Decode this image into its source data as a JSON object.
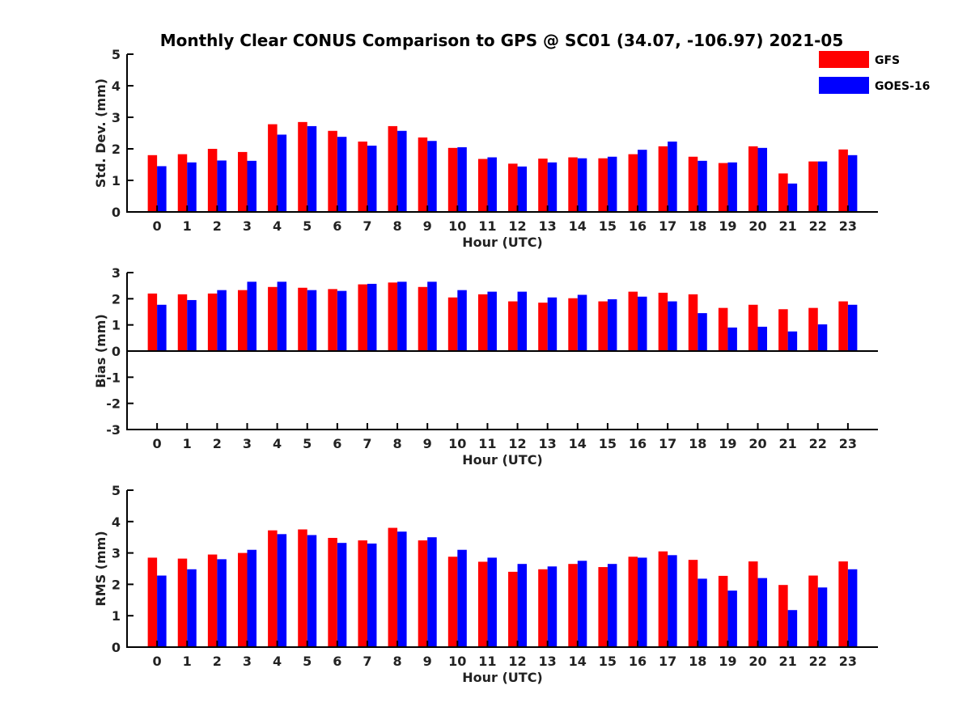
{
  "colors": {
    "gfs": "#ff0000",
    "goes": "#0000ff",
    "axis": "#000000"
  },
  "chart_data": [
    {
      "type": "bar",
      "title": "Monthly Clear CONUS Comparison to GPS @ SC01 (34.07, -106.97) 2021-05",
      "xlabel": "Hour (UTC)",
      "ylabel": "Std. Dev. (mm)",
      "ylim": [
        0,
        5
      ],
      "yticks": [
        "0",
        "1",
        "2",
        "3",
        "4",
        "5"
      ],
      "categories": [
        "0",
        "1",
        "2",
        "3",
        "4",
        "5",
        "6",
        "7",
        "8",
        "9",
        "10",
        "11",
        "12",
        "13",
        "14",
        "15",
        "16",
        "17",
        "18",
        "19",
        "20",
        "21",
        "22",
        "23"
      ],
      "legend_position": "top-right",
      "legend": [
        "GFS",
        "GOES-16"
      ],
      "series": [
        {
          "name": "GFS",
          "values": [
            1.8,
            1.83,
            2.0,
            1.9,
            2.78,
            2.85,
            2.57,
            2.23,
            2.72,
            2.36,
            2.03,
            1.68,
            1.53,
            1.69,
            1.73,
            1.7,
            1.83,
            2.08,
            1.75,
            1.55,
            2.08,
            1.22,
            1.6,
            1.98
          ]
        },
        {
          "name": "GOES-16",
          "values": [
            1.45,
            1.57,
            1.63,
            1.62,
            2.45,
            2.72,
            2.38,
            2.1,
            2.57,
            2.25,
            2.05,
            1.73,
            1.44,
            1.57,
            1.7,
            1.75,
            1.97,
            2.23,
            1.62,
            1.57,
            2.03,
            0.9,
            1.6,
            1.8
          ]
        }
      ]
    },
    {
      "type": "bar",
      "xlabel": "Hour (UTC)",
      "ylabel": "Bias (mm)",
      "ylim": [
        -3,
        3
      ],
      "yticks": [
        "-3",
        "-2",
        "-1",
        "0",
        "1",
        "2",
        "3"
      ],
      "categories": [
        "0",
        "1",
        "2",
        "3",
        "4",
        "5",
        "6",
        "7",
        "8",
        "9",
        "10",
        "11",
        "12",
        "13",
        "14",
        "15",
        "16",
        "17",
        "18",
        "19",
        "20",
        "21",
        "22",
        "23"
      ],
      "series": [
        {
          "name": "GFS",
          "values": [
            2.2,
            2.17,
            2.2,
            2.33,
            2.45,
            2.42,
            2.37,
            2.55,
            2.62,
            2.45,
            2.05,
            2.17,
            1.9,
            1.85,
            2.02,
            1.9,
            2.27,
            2.23,
            2.17,
            1.65,
            1.77,
            1.6,
            1.65,
            1.9
          ]
        },
        {
          "name": "GOES-16",
          "values": [
            1.77,
            1.95,
            2.33,
            2.65,
            2.65,
            2.33,
            2.3,
            2.57,
            2.65,
            2.65,
            2.33,
            2.27,
            2.27,
            2.05,
            2.15,
            1.98,
            2.08,
            1.9,
            1.45,
            0.9,
            0.93,
            0.75,
            1.02,
            1.77
          ]
        }
      ]
    },
    {
      "type": "bar",
      "xlabel": "Hour (UTC)",
      "ylabel": "RMS (mm)",
      "ylim": [
        0,
        5
      ],
      "yticks": [
        "0",
        "1",
        "2",
        "3",
        "4",
        "5"
      ],
      "categories": [
        "0",
        "1",
        "2",
        "3",
        "4",
        "5",
        "6",
        "7",
        "8",
        "9",
        "10",
        "11",
        "12",
        "13",
        "14",
        "15",
        "16",
        "17",
        "18",
        "19",
        "20",
        "21",
        "22",
        "23"
      ],
      "series": [
        {
          "name": "GFS",
          "values": [
            2.85,
            2.82,
            2.95,
            3.0,
            3.72,
            3.75,
            3.48,
            3.4,
            3.8,
            3.4,
            2.88,
            2.72,
            2.4,
            2.48,
            2.65,
            2.55,
            2.88,
            3.05,
            2.78,
            2.27,
            2.73,
            1.98,
            2.28,
            2.73
          ]
        },
        {
          "name": "GOES-16",
          "values": [
            2.28,
            2.48,
            2.8,
            3.1,
            3.6,
            3.57,
            3.32,
            3.3,
            3.68,
            3.5,
            3.1,
            2.85,
            2.65,
            2.57,
            2.75,
            2.65,
            2.85,
            2.93,
            2.18,
            1.8,
            2.2,
            1.18,
            1.9,
            2.48
          ]
        }
      ]
    }
  ]
}
